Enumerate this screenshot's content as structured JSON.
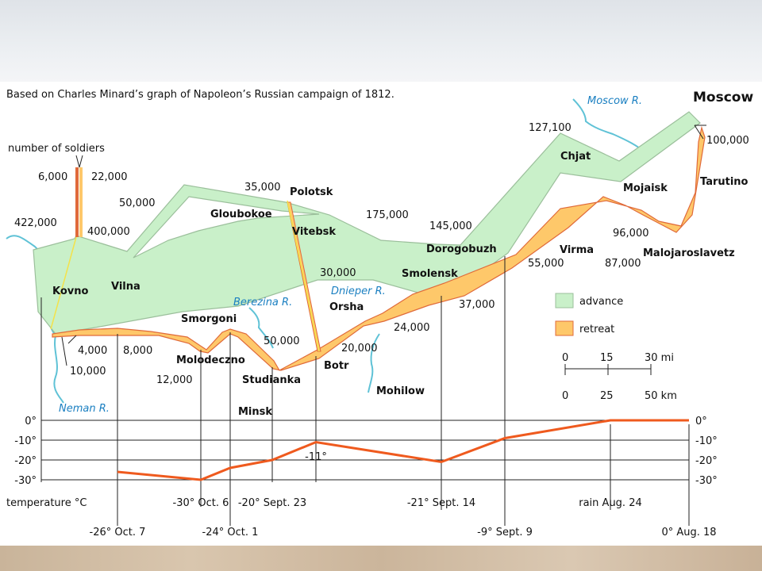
{
  "chart_data": {
    "type": "flow-map",
    "title": "Based on Charles Minard’s graph of Napoleon’s Russian campaign of 1812.",
    "subtitle_label": "number of soldiers",
    "flow_legend": [
      {
        "name": "advance",
        "color": "#c9f0c9"
      },
      {
        "name": "retreat",
        "color": "#fec86a"
      }
    ],
    "colors": {
      "advance_fill": "#c9f0c9",
      "advance_edge": "#9bbf9b",
      "retreat_fill": "#fec86a",
      "retreat_edge": "#e06a3a",
      "river": "#5fc2d6",
      "temperature_line": "#ef5a1e"
    },
    "cities": [
      {
        "name": "Moscow",
        "big": true
      },
      {
        "name": "Kovno"
      },
      {
        "name": "Vilna"
      },
      {
        "name": "Gloubokoe"
      },
      {
        "name": "Polotsk"
      },
      {
        "name": "Vitebsk"
      },
      {
        "name": "Smolensk"
      },
      {
        "name": "Dorogobuzh"
      },
      {
        "name": "Chjat"
      },
      {
        "name": "Mojaisk"
      },
      {
        "name": "Tarutino"
      },
      {
        "name": "Malojaroslavetz"
      },
      {
        "name": "Virma"
      },
      {
        "name": "Orsha"
      },
      {
        "name": "Smorgoni"
      },
      {
        "name": "Molodeczno"
      },
      {
        "name": "Studianka"
      },
      {
        "name": "Botr"
      },
      {
        "name": "Minsk"
      },
      {
        "name": "Mohilow"
      }
    ],
    "rivers": [
      "Moscow R.",
      "Berezina R.",
      "Dnieper R.",
      "Neman R."
    ],
    "troop_counts": [
      "6,000",
      "22,000",
      "422,000",
      "400,000",
      "50,000",
      "35,000",
      "175,000",
      "145,000",
      "127,100",
      "100,000",
      "96,000",
      "87,000",
      "55,000",
      "37,000",
      "30,000",
      "24,000",
      "20,000",
      "50,000",
      "12,000",
      "8,000",
      "4,000",
      "10,000"
    ],
    "scale_bar": {
      "miles": [
        "0",
        "15",
        "30 mi"
      ],
      "km": [
        "0",
        "25",
        "50 km"
      ]
    },
    "temperature": {
      "ylabel": "temperature °C",
      "y_ticks": [
        "0°",
        "-10°",
        "-20°",
        "-30°"
      ],
      "ylim": [
        -30,
        0
      ],
      "points": [
        {
          "label": "0° Aug. 18",
          "value": 0
        },
        {
          "label": "rain Aug. 24",
          "value": 0
        },
        {
          "label": "-9° Sept. 9",
          "value": -9
        },
        {
          "label": "-21° Sept. 14",
          "value": -21
        },
        {
          "label": "-11°",
          "value": -11
        },
        {
          "label": "-20° Sept. 23",
          "value": -20
        },
        {
          "label": "-24° Oct. 1",
          "value": -24
        },
        {
          "label": "-30° Oct. 6",
          "value": -30
        },
        {
          "label": "-26° Oct. 7",
          "value": -26
        }
      ]
    }
  }
}
